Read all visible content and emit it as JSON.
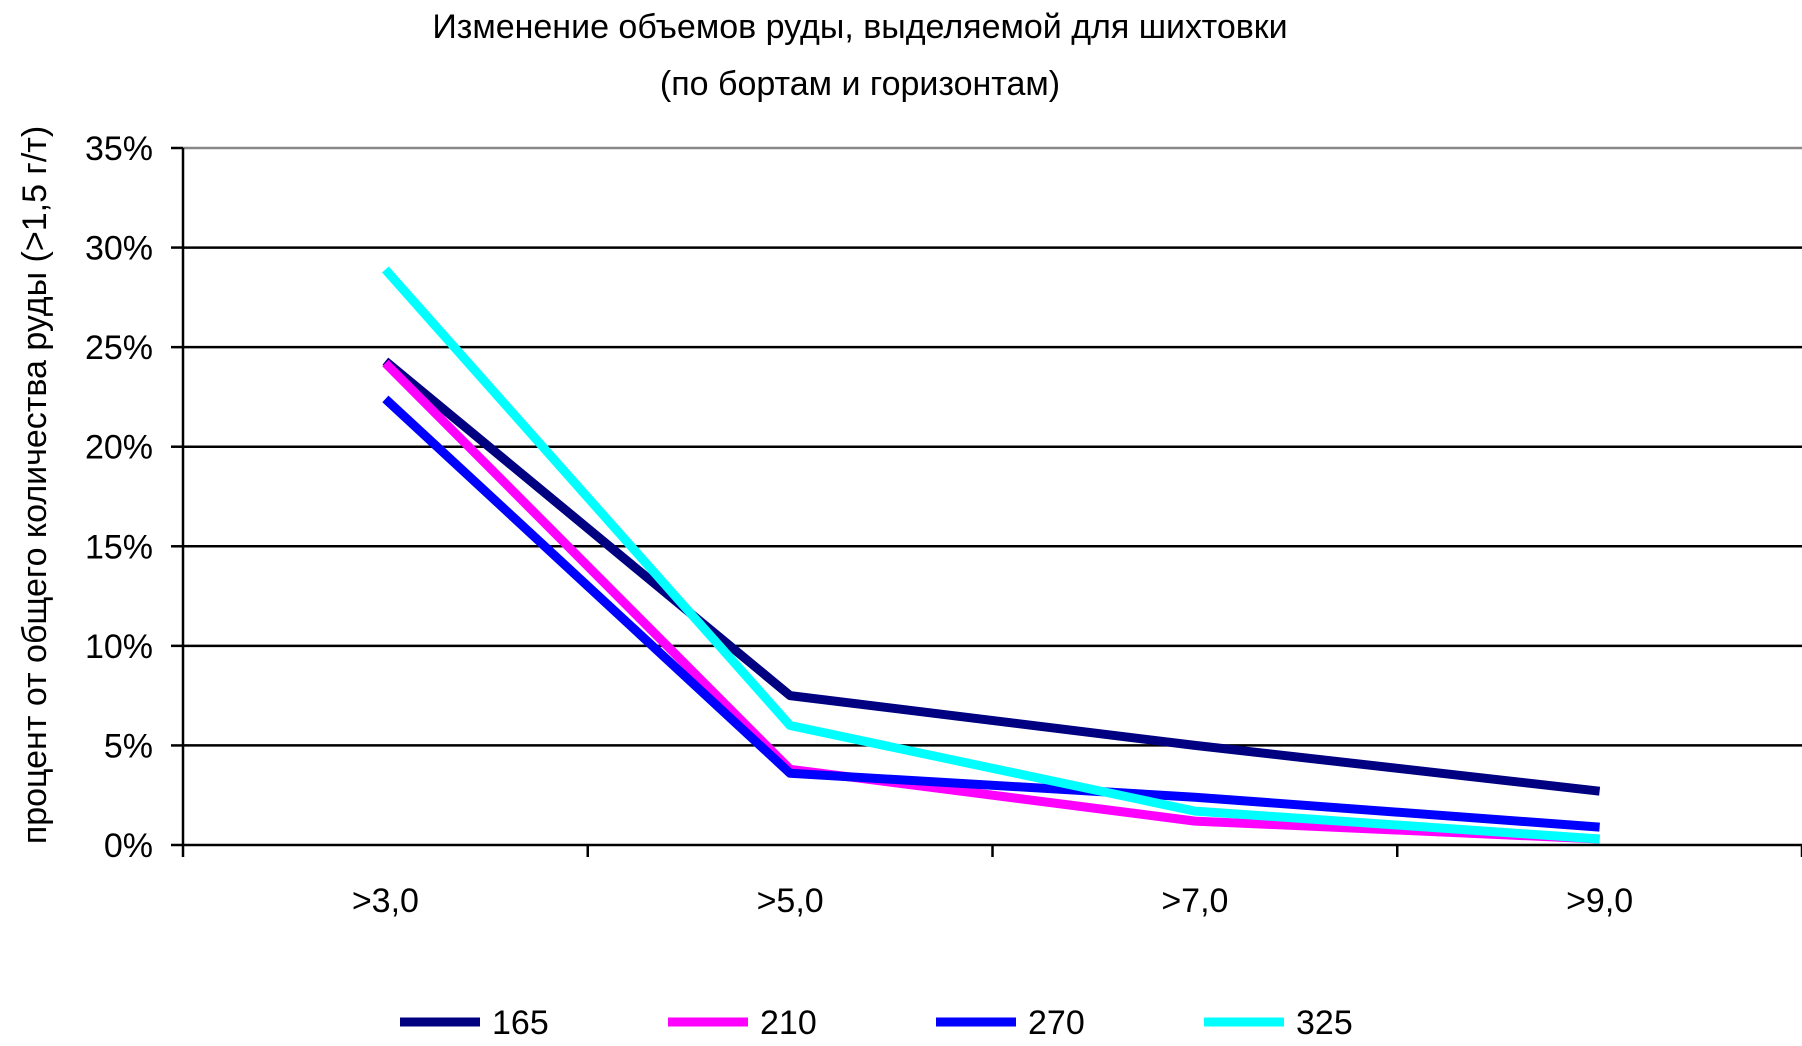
{
  "chart_data": {
    "type": "line",
    "title": [
      "Изменение объемов руды, выделяемой для шихтовки",
      "(по бортам и горизонтам)"
    ],
    "xlabel": "",
    "ylabel": "процент от общего количества руды (>1,5 г/т)",
    "categories": [
      ">3,0",
      ">5,0",
      ">7,0",
      ">9,0"
    ],
    "ylim": [
      0,
      35
    ],
    "yticks": [
      0,
      5,
      10,
      15,
      20,
      25,
      30,
      35
    ],
    "ytick_labels": [
      "0%",
      "5%",
      "10%",
      "15%",
      "20%",
      "25%",
      "30%",
      "35%"
    ],
    "grid": true,
    "legend_position": "bottom",
    "series": [
      {
        "name": "165",
        "color": "#000080",
        "values": [
          24.3,
          7.5,
          5.0,
          2.7
        ]
      },
      {
        "name": "210",
        "color": "#ff00ff",
        "values": [
          24.2,
          3.8,
          1.2,
          0.3
        ]
      },
      {
        "name": "270",
        "color": "#0000ff",
        "values": [
          22.4,
          3.6,
          2.4,
          0.9
        ]
      },
      {
        "name": "325",
        "color": "#00ffff",
        "values": [
          28.9,
          6.0,
          1.7,
          0.3
        ]
      }
    ]
  }
}
